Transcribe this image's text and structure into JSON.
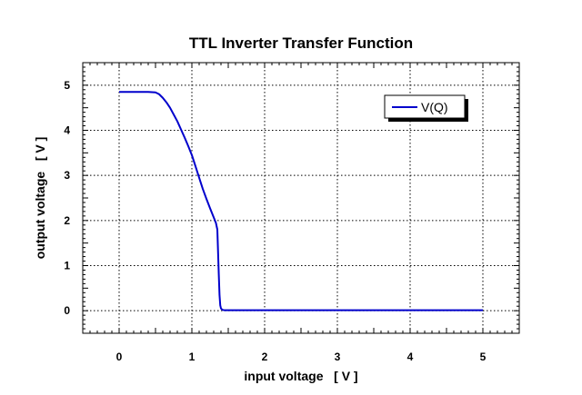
{
  "chart_data": {
    "type": "line",
    "title": "TTL Inverter Transfer Function",
    "xlabel": "input voltage   [ V ]",
    "ylabel": "output voltage   [ V ]",
    "xlim": [
      -0.5,
      5.5
    ],
    "ylim": [
      -0.5,
      5.5
    ],
    "x_ticks": [
      0,
      1,
      2,
      3,
      4,
      5
    ],
    "y_ticks": [
      0,
      1,
      2,
      3,
      4,
      5
    ],
    "x_tick_labels": [
      "0",
      "1",
      "2",
      "3",
      "4",
      "5"
    ],
    "y_tick_labels": [
      "0",
      "1",
      "2",
      "3",
      "4",
      "5"
    ],
    "grid": true,
    "legend": {
      "position": "top-right"
    },
    "series": [
      {
        "name": "V(Q)",
        "color": "#0000cc",
        "x": [
          0,
          0.1,
          0.2,
          0.3,
          0.4,
          0.5,
          0.55,
          0.6,
          0.65,
          0.7,
          0.75,
          0.8,
          0.85,
          0.9,
          0.95,
          1.0,
          1.05,
          1.1,
          1.15,
          1.2,
          1.25,
          1.3,
          1.33,
          1.35,
          1.36,
          1.37,
          1.38,
          1.39,
          1.4,
          1.42,
          1.45,
          1.5,
          2,
          3,
          4,
          5
        ],
        "y": [
          4.85,
          4.85,
          4.85,
          4.85,
          4.85,
          4.84,
          4.8,
          4.72,
          4.62,
          4.5,
          4.35,
          4.2,
          4.02,
          3.84,
          3.65,
          3.45,
          3.2,
          2.95,
          2.7,
          2.48,
          2.27,
          2.07,
          1.95,
          1.8,
          1.3,
          0.8,
          0.35,
          0.12,
          0.05,
          0.02,
          0.01,
          0.01,
          0.01,
          0.01,
          0.01,
          0.01
        ]
      }
    ]
  }
}
